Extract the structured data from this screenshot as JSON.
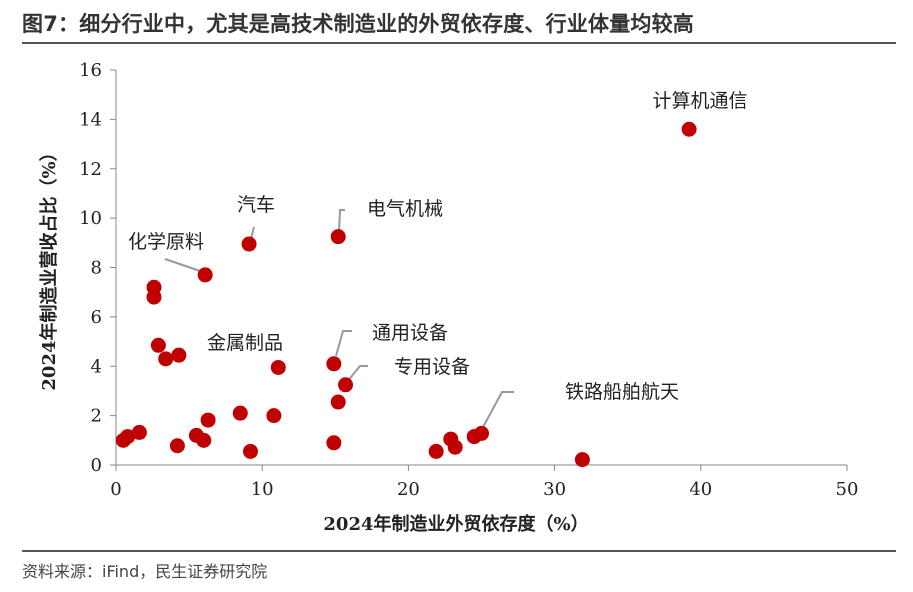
{
  "title": "图7：细分行业中，尤其是高技术制造业的外贸依存度、行业体量均较高",
  "source": "资料来源：iFind，民生证券研究院",
  "colors": {
    "point": "#C00000",
    "text": "#222222",
    "axis": "#888888",
    "leader": "#999999",
    "rule": "#555555"
  },
  "chart_data": {
    "type": "scatter",
    "title": "",
    "xlabel": "2024年制造业外贸依存度（%）",
    "ylabel": "2024年制造业营收占比（%）",
    "xlim": [
      0,
      50
    ],
    "ylim": [
      0,
      16
    ],
    "xticks": [
      0,
      10,
      20,
      30,
      40,
      50
    ],
    "yticks": [
      0,
      2,
      4,
      6,
      8,
      10,
      12,
      14,
      16
    ],
    "grid": false,
    "points": [
      {
        "x": 0.5,
        "y": 1.0
      },
      {
        "x": 0.8,
        "y": 1.15
      },
      {
        "x": 1.6,
        "y": 1.32
      },
      {
        "x": 2.6,
        "y": 7.2
      },
      {
        "x": 2.6,
        "y": 6.8
      },
      {
        "x": 2.9,
        "y": 4.85
      },
      {
        "x": 3.4,
        "y": 4.3
      },
      {
        "x": 4.3,
        "y": 4.45
      },
      {
        "x": 4.2,
        "y": 0.78
      },
      {
        "x": 5.5,
        "y": 1.2
      },
      {
        "x": 6.0,
        "y": 1.0
      },
      {
        "x": 6.3,
        "y": 1.82
      },
      {
        "x": 6.1,
        "y": 7.7
      },
      {
        "x": 8.5,
        "y": 2.1
      },
      {
        "x": 9.2,
        "y": 0.55
      },
      {
        "x": 9.1,
        "y": 8.95
      },
      {
        "x": 10.8,
        "y": 2.0
      },
      {
        "x": 11.1,
        "y": 3.95
      },
      {
        "x": 14.9,
        "y": 0.9
      },
      {
        "x": 14.9,
        "y": 4.1
      },
      {
        "x": 15.2,
        "y": 9.25
      },
      {
        "x": 15.2,
        "y": 2.55
      },
      {
        "x": 15.7,
        "y": 3.25
      },
      {
        "x": 21.9,
        "y": 0.55
      },
      {
        "x": 22.9,
        "y": 1.05
      },
      {
        "x": 23.2,
        "y": 0.72
      },
      {
        "x": 24.5,
        "y": 1.15
      },
      {
        "x": 25.0,
        "y": 1.28
      },
      {
        "x": 31.9,
        "y": 0.22
      },
      {
        "x": 39.2,
        "y": 13.6
      }
    ],
    "annotations": [
      {
        "text": "计算机通信",
        "x": 39.2,
        "y": 13.6
      },
      {
        "text": "汽车",
        "x": 9.1,
        "y": 8.95
      },
      {
        "text": "电气机械",
        "x": 15.2,
        "y": 9.25
      },
      {
        "text": "化学原料",
        "x": 6.1,
        "y": 7.7
      },
      {
        "text": "金属制品",
        "x": 11.1,
        "y": 3.95
      },
      {
        "text": "通用设备",
        "x": 14.9,
        "y": 4.1
      },
      {
        "text": "专用设备",
        "x": 15.7,
        "y": 3.25
      },
      {
        "text": "铁路船舶航天",
        "x": 25.0,
        "y": 1.28
      }
    ]
  }
}
